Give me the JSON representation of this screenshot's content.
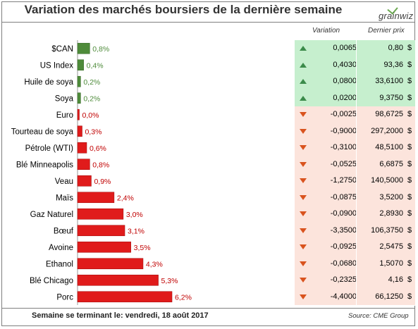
{
  "title": "Variation des marchés boursiers de la dernière semaine",
  "logo": "grainwiz",
  "columns": {
    "variation": "Variation",
    "price": "Dernier prix"
  },
  "currency": "$",
  "footer": {
    "left": "Semaine se terminant le: vendredi, 18 août 2017",
    "right": "Source: CME Group"
  },
  "colors": {
    "positive_bar": "#4e8b3a",
    "negative_bar": "#e01b1b",
    "positive_text": "#4e8b3a",
    "negative_text": "#c00000",
    "up_row_bg": "#c6efce",
    "down_row_bg": "#fce4dc"
  },
  "chart_data": {
    "type": "bar",
    "orientation": "horizontal",
    "categories": [
      "$CAN",
      "US Index",
      "Huile de soya",
      "Soya",
      "Euro",
      "Tourteau de soya",
      "Pétrole (WTI)",
      "Blé Minneapolis",
      "Veau",
      "Maïs",
      "Gaz Naturel",
      "Bœuf",
      "Avoine",
      "Ethanol",
      "Blé Chicago",
      "Porc"
    ],
    "values": [
      0.8,
      0.4,
      0.2,
      0.2,
      0.0,
      0.3,
      0.6,
      0.8,
      0.9,
      2.4,
      3.0,
      3.1,
      3.5,
      4.3,
      5.3,
      6.2
    ],
    "direction": [
      "up",
      "up",
      "up",
      "up",
      "down",
      "down",
      "down",
      "down",
      "down",
      "down",
      "down",
      "down",
      "down",
      "down",
      "down",
      "down"
    ],
    "data_labels": [
      "0,8%",
      "0,4%",
      "0,2%",
      "0,2%",
      "0,0%",
      "0,3%",
      "0,6%",
      "0,8%",
      "0,9%",
      "2,4%",
      "3,0%",
      "3,1%",
      "3,5%",
      "4,3%",
      "5,3%",
      "6,2%"
    ],
    "xlim": [
      0,
      6.2
    ],
    "grid": false,
    "legend": false
  },
  "table": {
    "rows": [
      {
        "direction": "up",
        "variation": "0,0065",
        "price": "0,80"
      },
      {
        "direction": "up",
        "variation": "0,4030",
        "price": "93,36"
      },
      {
        "direction": "up",
        "variation": "0,0800",
        "price": "33,6100"
      },
      {
        "direction": "up",
        "variation": "0,0200",
        "price": "9,3750"
      },
      {
        "direction": "down",
        "variation": "-0,0025",
        "price": "98,6725"
      },
      {
        "direction": "down",
        "variation": "-0,9000",
        "price": "297,2000"
      },
      {
        "direction": "down",
        "variation": "-0,3100",
        "price": "48,5100"
      },
      {
        "direction": "down",
        "variation": "-0,0525",
        "price": "6,6875"
      },
      {
        "direction": "down",
        "variation": "-1,2750",
        "price": "140,5000"
      },
      {
        "direction": "down",
        "variation": "-0,0875",
        "price": "3,5200"
      },
      {
        "direction": "down",
        "variation": "-0,0900",
        "price": "2,8930"
      },
      {
        "direction": "down",
        "variation": "-3,3500",
        "price": "106,3750"
      },
      {
        "direction": "down",
        "variation": "-0,0925",
        "price": "2,5475"
      },
      {
        "direction": "down",
        "variation": "-0,0680",
        "price": "1,5070"
      },
      {
        "direction": "down",
        "variation": "-0,2325",
        "price": "4,16"
      },
      {
        "direction": "down",
        "variation": "-4,4000",
        "price": "66,1250"
      }
    ]
  }
}
